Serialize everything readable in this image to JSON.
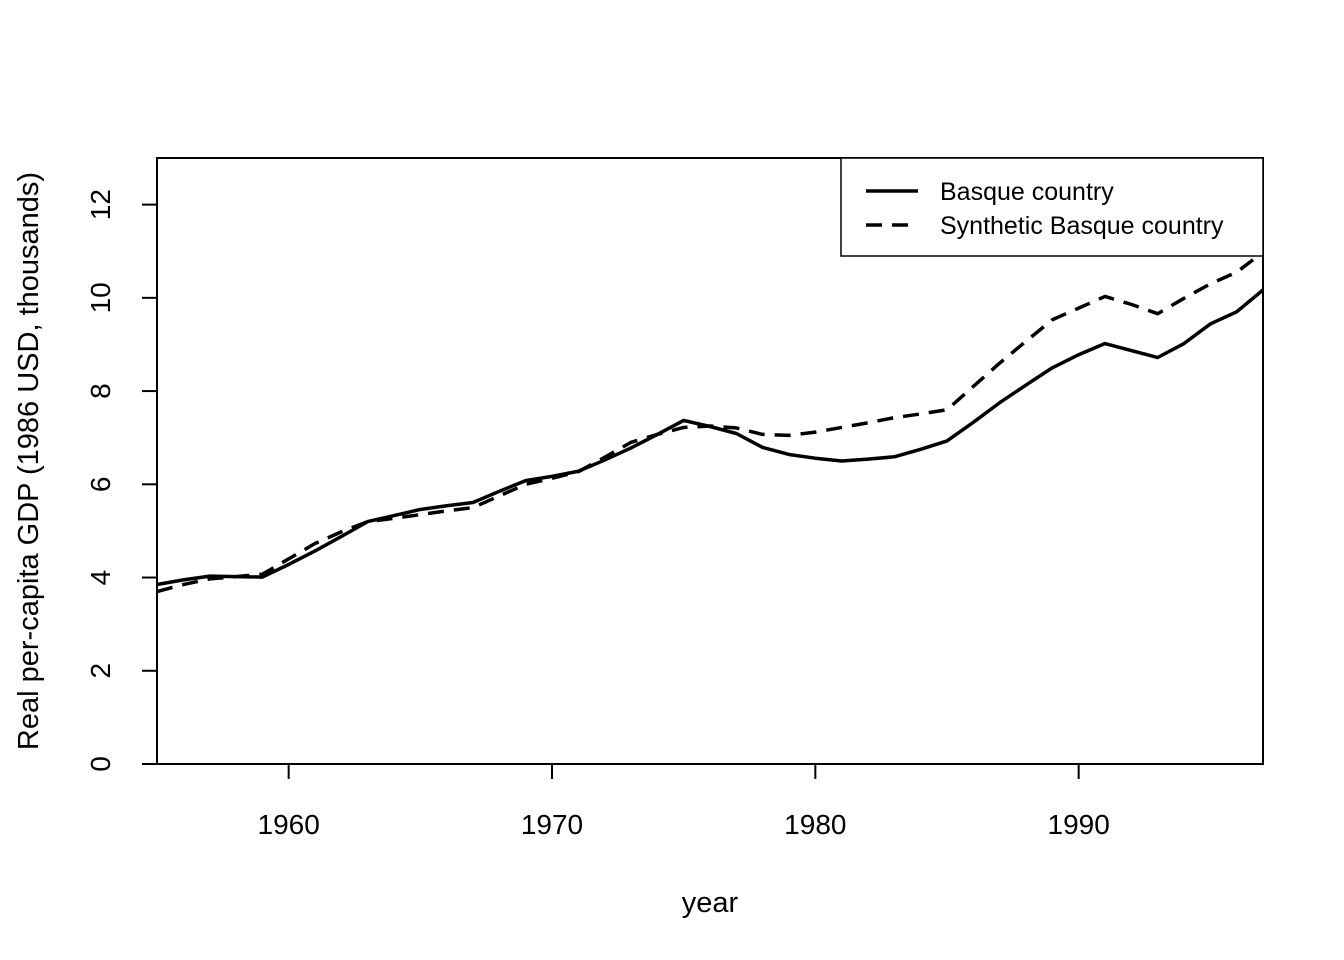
{
  "chart_data": {
    "type": "line",
    "title": "",
    "xlabel": "year",
    "ylabel": "Real per-capita GDP (1986 USD, thousands)",
    "xlim": [
      1955,
      1997
    ],
    "ylim": [
      0,
      13
    ],
    "x_ticks": [
      1960,
      1970,
      1980,
      1990
    ],
    "y_ticks": [
      0,
      2,
      4,
      6,
      8,
      10,
      12
    ],
    "grid": false,
    "legend_position": "top-right",
    "x": [
      1955,
      1956,
      1957,
      1958,
      1959,
      1960,
      1961,
      1962,
      1963,
      1964,
      1965,
      1966,
      1967,
      1968,
      1969,
      1970,
      1971,
      1972,
      1973,
      1974,
      1975,
      1976,
      1977,
      1978,
      1979,
      1980,
      1981,
      1982,
      1983,
      1984,
      1985,
      1986,
      1987,
      1988,
      1989,
      1990,
      1991,
      1992,
      1993,
      1994,
      1995,
      1996,
      1997
    ],
    "series": [
      {
        "name": "Basque country",
        "line_style": "solid",
        "color": "#000000",
        "values": [
          3.85,
          3.95,
          4.03,
          4.02,
          4.01,
          4.28,
          4.57,
          4.88,
          5.2,
          5.33,
          5.46,
          5.54,
          5.61,
          5.85,
          6.08,
          6.17,
          6.28,
          6.52,
          6.78,
          7.07,
          7.37,
          7.24,
          7.09,
          6.79,
          6.64,
          6.56,
          6.5,
          6.54,
          6.59,
          6.75,
          6.93,
          7.33,
          7.75,
          8.13,
          8.5,
          8.78,
          9.02,
          8.87,
          8.72,
          9.02,
          9.44,
          9.7,
          10.17
        ]
      },
      {
        "name": "Synthetic Basque country",
        "line_style": "dashed",
        "color": "#000000",
        "values": [
          3.7,
          3.85,
          3.97,
          4.02,
          4.07,
          4.4,
          4.73,
          4.98,
          5.2,
          5.27,
          5.35,
          5.43,
          5.5,
          5.75,
          6.0,
          6.13,
          6.27,
          6.58,
          6.9,
          7.07,
          7.22,
          7.25,
          7.21,
          7.07,
          7.05,
          7.12,
          7.22,
          7.32,
          7.43,
          7.51,
          7.6,
          8.1,
          8.6,
          9.07,
          9.53,
          9.78,
          10.03,
          9.86,
          9.66,
          9.99,
          10.3,
          10.55,
          10.98
        ]
      }
    ]
  }
}
